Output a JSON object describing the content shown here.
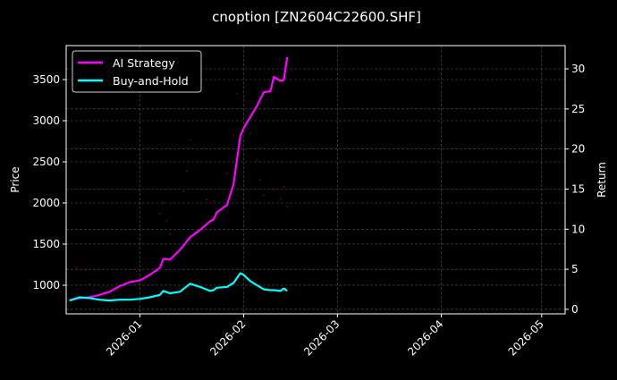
{
  "chart_data": {
    "type": "line",
    "title": "cnoption [ZN2604C22600.SHF]",
    "ylabel_left": "Price",
    "ylabel_right": "Return",
    "xlim": [
      "2025-12-10",
      "2026-05-08"
    ],
    "ylim_left": [
      652,
      3913
    ],
    "ylim_right": [
      -0.56,
      32.9
    ],
    "x_ticks": [
      "2026-01",
      "2026-02",
      "2026-03",
      "2026-04",
      "2026-05"
    ],
    "x_tick_dates": [
      "2026-01-01",
      "2026-02-01",
      "2026-03-01",
      "2026-04-01",
      "2026-05-01"
    ],
    "y_ticks_left": [
      1000,
      1500,
      2000,
      2500,
      3000,
      3500
    ],
    "y_ticks_right": [
      0,
      5,
      10,
      15,
      20,
      25,
      30
    ],
    "grid": true,
    "legend_placement": "top-left",
    "background": "#000000",
    "series": [
      {
        "name": "AI Strategy",
        "axis": "right",
        "color": "#ff00ff",
        "x": [
          "2025-12-11",
          "2025-12-14",
          "2025-12-17",
          "2025-12-20",
          "2025-12-23",
          "2025-12-26",
          "2025-12-29",
          "2026-01-01",
          "2026-01-04",
          "2026-01-07",
          "2026-01-08",
          "2026-01-10",
          "2026-01-13",
          "2026-01-16",
          "2026-01-19",
          "2026-01-22",
          "2026-01-23",
          "2026-01-24",
          "2026-01-27",
          "2026-01-29",
          "2026-01-31",
          "2026-02-01",
          "2026-02-03",
          "2026-02-05",
          "2026-02-07",
          "2026-02-09",
          "2026-02-10",
          "2026-02-12",
          "2026-02-13",
          "2026-02-14"
        ],
        "values": [
          1.1,
          1.4,
          1.5,
          1.8,
          2.2,
          2.9,
          3.4,
          3.6,
          4.3,
          5.2,
          6.3,
          6.2,
          7.4,
          9.0,
          9.9,
          11.0,
          11.2,
          12.1,
          13.0,
          15.6,
          21.6,
          22.6,
          24.0,
          25.4,
          27.1,
          27.2,
          29.0,
          28.5,
          28.6,
          31.5
        ]
      },
      {
        "name": "Buy-and-Hold",
        "axis": "right",
        "color": "#00ffff",
        "x": [
          "2025-12-11",
          "2025-12-14",
          "2025-12-17",
          "2025-12-20",
          "2025-12-23",
          "2025-12-26",
          "2025-12-29",
          "2026-01-01",
          "2026-01-04",
          "2026-01-07",
          "2026-01-08",
          "2026-01-10",
          "2026-01-13",
          "2026-01-16",
          "2026-01-19",
          "2026-01-22",
          "2026-01-23",
          "2026-01-24",
          "2026-01-27",
          "2026-01-29",
          "2026-01-31",
          "2026-02-01",
          "2026-02-03",
          "2026-02-05",
          "2026-02-07",
          "2026-02-09",
          "2026-02-10",
          "2026-02-12",
          "2026-02-13",
          "2026-02-14"
        ],
        "values": [
          1.1,
          1.5,
          1.4,
          1.2,
          1.1,
          1.2,
          1.2,
          1.3,
          1.5,
          1.8,
          2.3,
          2.0,
          2.2,
          3.2,
          2.8,
          2.3,
          2.4,
          2.7,
          2.8,
          3.3,
          4.5,
          4.3,
          3.5,
          3.0,
          2.5,
          2.4,
          2.4,
          2.3,
          2.6,
          2.3
        ]
      },
      {
        "type": "scatter",
        "axis": "left",
        "color": "#8b0000",
        "x": [
          "2025-12-13",
          "2025-12-16",
          "2025-12-17",
          "2025-12-31",
          "2026-01-07",
          "2026-01-08",
          "2026-01-09",
          "2026-01-10",
          "2026-01-14",
          "2026-01-15",
          "2026-01-16",
          "2026-01-21",
          "2026-01-23",
          "2026-01-27",
          "2026-01-29",
          "2026-01-30",
          "2026-02-03",
          "2026-02-05",
          "2026-02-06",
          "2026-02-07",
          "2026-02-10",
          "2026-02-12",
          "2026-02-13",
          "2026-02-14"
        ],
        "values": [
          1217,
          1185,
          1011,
          1174,
          1870,
          2000,
          1783,
          1620,
          2141,
          2391,
          2761,
          2043,
          2022,
          2359,
          2826,
          3326,
          2848,
          2522,
          2283,
          2098,
          2163,
          2054,
          2196,
          1957
        ]
      }
    ]
  }
}
